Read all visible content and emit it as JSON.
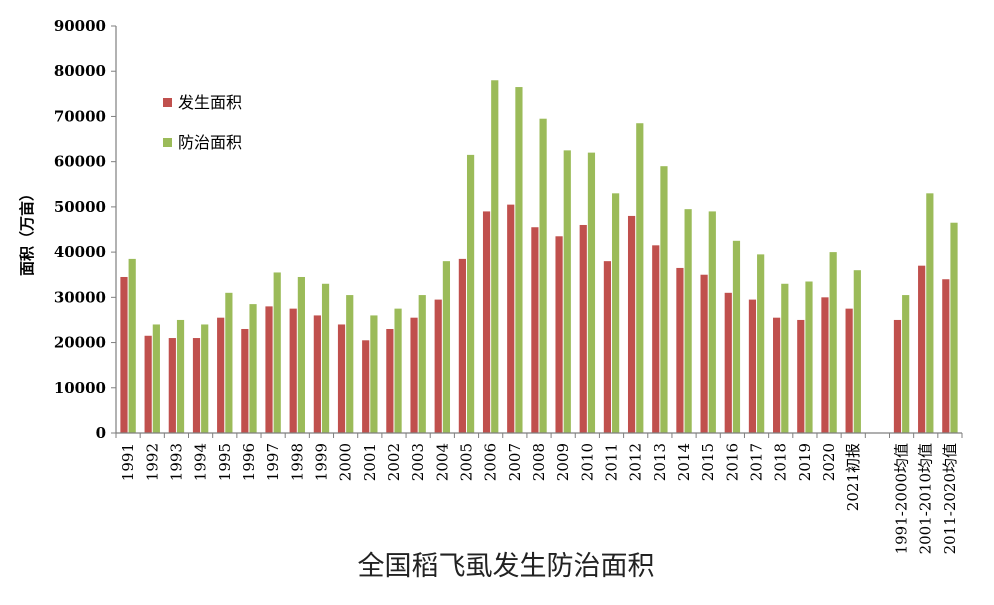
{
  "chart_data": {
    "type": "bar",
    "title": "全国稻飞虱发生防治面积",
    "ylabel": "面积（万亩）",
    "xlabel": "",
    "ylim": [
      0,
      90000
    ],
    "yticks": [
      "0",
      "10000",
      "20000",
      "30000",
      "40000",
      "50000",
      "60000",
      "70000",
      "80000",
      "90000"
    ],
    "legend_position": "top-left",
    "grid": false,
    "categories": [
      "1991",
      "1992",
      "1993",
      "1994",
      "1995",
      "1996",
      "1997",
      "1998",
      "1999",
      "2000",
      "2001",
      "2002",
      "2003",
      "2004",
      "2005",
      "2006",
      "2007",
      "2008",
      "2009",
      "2010",
      "2011",
      "2012",
      "2013",
      "2014",
      "2015",
      "2016",
      "2017",
      "2018",
      "2019",
      "2020",
      "2021初报",
      "",
      "1991-2000均值",
      "2001-2010均值",
      "2011-2020均值"
    ],
    "series": [
      {
        "name": "发生面积",
        "color": "#c0504d",
        "values": [
          34500,
          21500,
          21000,
          21000,
          25500,
          23000,
          28000,
          27500,
          26000,
          24000,
          20500,
          23000,
          25500,
          29500,
          38500,
          49000,
          50500,
          45500,
          43500,
          46000,
          38000,
          48000,
          41500,
          36500,
          35000,
          31000,
          29500,
          25500,
          25000,
          30000,
          27500,
          null,
          25000,
          37000,
          34000
        ]
      },
      {
        "name": "防治面积",
        "color": "#9bbb59",
        "values": [
          38500,
          24000,
          25000,
          24000,
          31000,
          28500,
          35500,
          34500,
          33000,
          30500,
          26000,
          27500,
          30500,
          38000,
          61500,
          78000,
          76500,
          69500,
          62500,
          62000,
          53000,
          68500,
          59000,
          49500,
          49000,
          42500,
          39500,
          33000,
          33500,
          40000,
          36000,
          null,
          30500,
          53000,
          46500
        ]
      }
    ]
  }
}
